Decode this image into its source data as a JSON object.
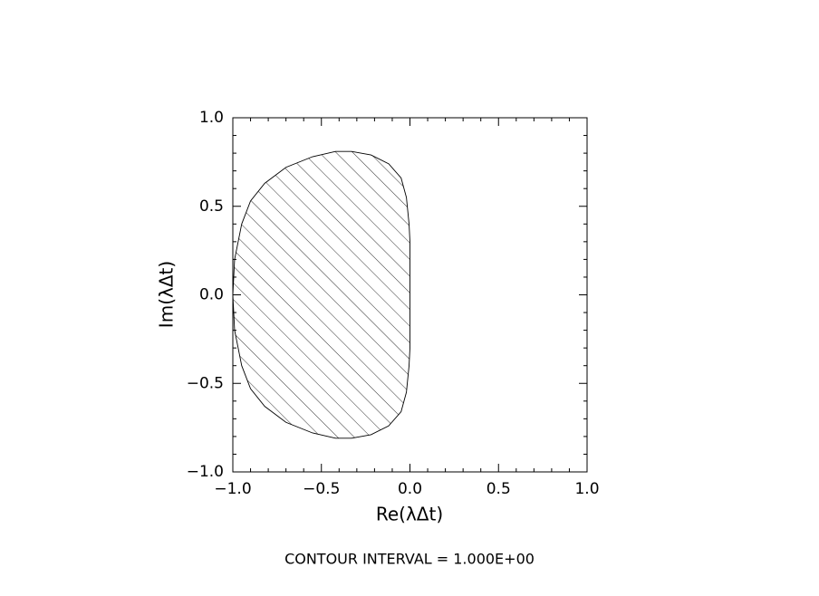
{
  "chart_data": {
    "type": "contour",
    "xlabel": "Re(λΔt)",
    "ylabel": "Im(λΔt)",
    "annotation": "CONTOUR INTERVAL = 1.000E+00",
    "xlim": [
      -1,
      1
    ],
    "ylim": [
      -1,
      1
    ],
    "xticks": [
      {
        "value": -1,
        "label": "−1.0"
      },
      {
        "value": -0.5,
        "label": "−0.5"
      },
      {
        "value": 0,
        "label": "0.0"
      },
      {
        "value": 0.5,
        "label": "0.5"
      },
      {
        "value": 1,
        "label": "1.0"
      }
    ],
    "yticks": [
      {
        "value": -1,
        "label": "−1.0"
      },
      {
        "value": -0.5,
        "label": "−0.5"
      },
      {
        "value": 0,
        "label": "0.0"
      },
      {
        "value": 0.5,
        "label": "0.5"
      },
      {
        "value": 1,
        "label": "1.0"
      }
    ],
    "xminorticks": [
      -0.9,
      -0.8,
      -0.7,
      -0.6,
      -0.4,
      -0.3,
      -0.2,
      -0.1,
      0.1,
      0.2,
      0.3,
      0.4,
      0.6,
      0.7,
      0.8,
      0.9
    ],
    "yminorticks": [
      -0.9,
      -0.8,
      -0.7,
      -0.6,
      -0.4,
      -0.3,
      -0.2,
      -0.1,
      0.1,
      0.2,
      0.3,
      0.4,
      0.6,
      0.7,
      0.8,
      0.9
    ],
    "color": "#000000",
    "hatch": true,
    "region": {
      "x": [
        -1.0,
        -0.99,
        -0.95,
        -0.9,
        -0.82,
        -0.7,
        -0.55,
        -0.42,
        -0.33,
        -0.22,
        -0.12,
        -0.05,
        -0.02,
        -0.005,
        0,
        0,
        -0.005,
        -0.02,
        -0.05,
        -0.12,
        -0.22,
        -0.33,
        -0.42,
        -0.55,
        -0.7,
        -0.82,
        -0.9,
        -0.95,
        -0.99
      ],
      "y": [
        0,
        0.2,
        0.4,
        0.53,
        0.63,
        0.72,
        0.78,
        0.81,
        0.81,
        0.79,
        0.74,
        0.66,
        0.55,
        0.4,
        0.3,
        -0.3,
        -0.4,
        -0.55,
        -0.66,
        -0.74,
        -0.79,
        -0.81,
        -0.81,
        -0.78,
        -0.72,
        -0.63,
        -0.53,
        -0.4,
        -0.2
      ]
    }
  }
}
